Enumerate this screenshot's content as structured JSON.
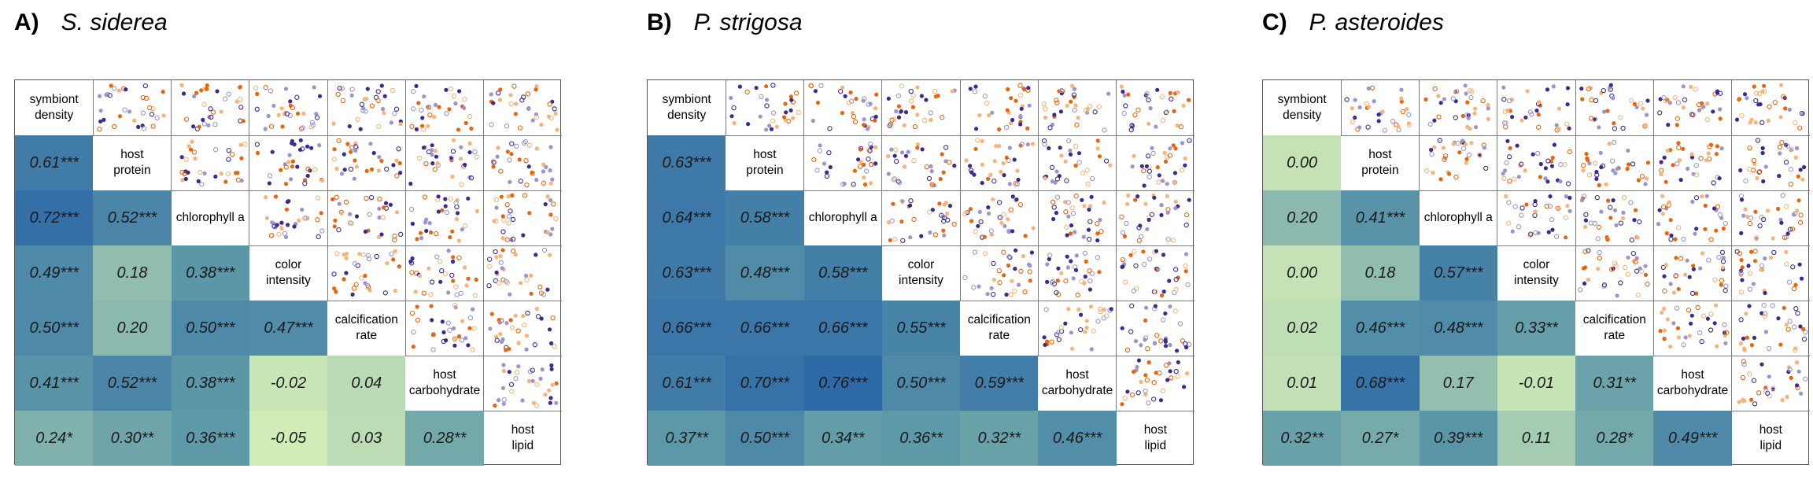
{
  "variables": [
    "symbiont density",
    "host protein",
    "chlorophyll a",
    "color intensity",
    "calcification rate",
    "host carbohydrate",
    "host lipid"
  ],
  "diagonal_labels": [
    [
      "symbiont",
      "density"
    ],
    [
      "host",
      "protein"
    ],
    [
      "chlorophyll a"
    ],
    [
      "color",
      "intensity"
    ],
    [
      "calcification",
      "rate"
    ],
    [
      "host",
      "carbohydrate"
    ],
    [
      "host",
      "lipid"
    ]
  ],
  "colors": {
    "scale_low": "#d2ecb8",
    "scale_mid": "#5f9aa8",
    "scale_high": "#2f6aa8",
    "point_orange": "#e8650e",
    "point_light_orange": "#f6b37a",
    "point_purple": "#3d2a8f",
    "point_lavender": "#9b95cf",
    "grid_line": "#7a7a7a"
  },
  "chart_data": [
    {
      "type": "heatmap",
      "panel": "A)",
      "title": "S. siderea",
      "lower_triangle": [
        [
          {
            "r": 0.61,
            "sig": "***"
          }
        ],
        [
          {
            "r": 0.72,
            "sig": "***"
          },
          {
            "r": 0.52,
            "sig": "***"
          }
        ],
        [
          {
            "r": 0.49,
            "sig": "***"
          },
          {
            "r": 0.18,
            "sig": ""
          },
          {
            "r": 0.38,
            "sig": "***"
          }
        ],
        [
          {
            "r": 0.5,
            "sig": "***"
          },
          {
            "r": 0.2,
            "sig": ""
          },
          {
            "r": 0.5,
            "sig": "***"
          },
          {
            "r": 0.47,
            "sig": "***"
          }
        ],
        [
          {
            "r": 0.41,
            "sig": "***"
          },
          {
            "r": 0.52,
            "sig": "***"
          },
          {
            "r": 0.38,
            "sig": "***"
          },
          {
            "r": -0.02,
            "sig": ""
          },
          {
            "r": 0.04,
            "sig": ""
          }
        ],
        [
          {
            "r": 0.24,
            "sig": "*"
          },
          {
            "r": 0.3,
            "sig": "**"
          },
          {
            "r": 0.36,
            "sig": "***"
          },
          {
            "r": -0.05,
            "sig": ""
          },
          {
            "r": 0.03,
            "sig": ""
          },
          {
            "r": 0.28,
            "sig": "**"
          }
        ]
      ]
    },
    {
      "type": "heatmap",
      "panel": "B)",
      "title": "P. strigosa",
      "lower_triangle": [
        [
          {
            "r": 0.63,
            "sig": "***"
          }
        ],
        [
          {
            "r": 0.64,
            "sig": "***"
          },
          {
            "r": 0.58,
            "sig": "***"
          }
        ],
        [
          {
            "r": 0.63,
            "sig": "***"
          },
          {
            "r": 0.48,
            "sig": "***"
          },
          {
            "r": 0.58,
            "sig": "***"
          }
        ],
        [
          {
            "r": 0.66,
            "sig": "***"
          },
          {
            "r": 0.66,
            "sig": "***"
          },
          {
            "r": 0.66,
            "sig": "***"
          },
          {
            "r": 0.55,
            "sig": "***"
          }
        ],
        [
          {
            "r": 0.61,
            "sig": "***"
          },
          {
            "r": 0.7,
            "sig": "***"
          },
          {
            "r": 0.76,
            "sig": "***"
          },
          {
            "r": 0.5,
            "sig": "***"
          },
          {
            "r": 0.59,
            "sig": "***"
          }
        ],
        [
          {
            "r": 0.37,
            "sig": "**"
          },
          {
            "r": 0.5,
            "sig": "***"
          },
          {
            "r": 0.34,
            "sig": "**"
          },
          {
            "r": 0.36,
            "sig": "**"
          },
          {
            "r": 0.32,
            "sig": "**"
          },
          {
            "r": 0.46,
            "sig": "***"
          }
        ]
      ]
    },
    {
      "type": "heatmap",
      "panel": "C)",
      "title": "P. asteroides",
      "lower_triangle": [
        [
          {
            "r": 0.0,
            "sig": ""
          }
        ],
        [
          {
            "r": 0.2,
            "sig": ""
          },
          {
            "r": 0.41,
            "sig": "***"
          }
        ],
        [
          {
            "r": 0.0,
            "sig": ""
          },
          {
            "r": 0.18,
            "sig": ""
          },
          {
            "r": 0.57,
            "sig": "***"
          }
        ],
        [
          {
            "r": 0.02,
            "sig": ""
          },
          {
            "r": 0.46,
            "sig": "***"
          },
          {
            "r": 0.48,
            "sig": "***"
          },
          {
            "r": 0.33,
            "sig": "**"
          }
        ],
        [
          {
            "r": 0.01,
            "sig": ""
          },
          {
            "r": 0.68,
            "sig": "***"
          },
          {
            "r": 0.17,
            "sig": ""
          },
          {
            "r": -0.01,
            "sig": ""
          },
          {
            "r": 0.31,
            "sig": "**"
          }
        ],
        [
          {
            "r": 0.32,
            "sig": "**"
          },
          {
            "r": 0.27,
            "sig": "*"
          },
          {
            "r": 0.39,
            "sig": "***"
          },
          {
            "r": 0.11,
            "sig": ""
          },
          {
            "r": 0.28,
            "sig": "*"
          },
          {
            "r": 0.49,
            "sig": "***"
          }
        ]
      ]
    }
  ]
}
